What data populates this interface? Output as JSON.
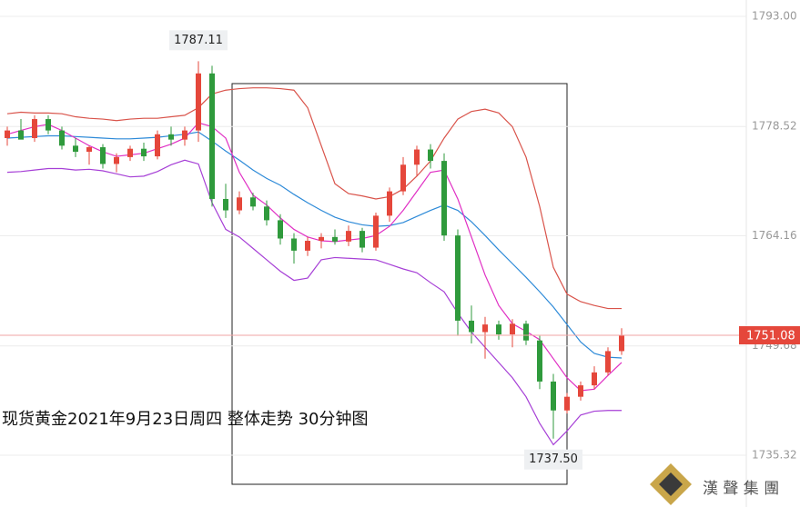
{
  "chart_data": {
    "type": "candlestick",
    "title": "现货黄金2021年9月23日周四 整体走势 30分钟图",
    "up_color": "#e5473b",
    "down_color": "#2f9a3c",
    "open": [
      1777,
      1778,
      1777,
      1779.5,
      1778,
      1776,
      1775.2,
      1775.8,
      1773.6,
      1774.5,
      1775.6,
      1774.6,
      1777.5,
      1776.8,
      1778,
      1785.5,
      1769,
      1767.5,
      1769.2,
      1768,
      1766.2,
      1763.8,
      1762.2,
      1763.5,
      1764,
      1763.4,
      1764.8,
      1762.6,
      1766.8,
      1770,
      1773.5,
      1775.5,
      1774,
      1764.2,
      1753,
      1751.5,
      1752.5,
      1751.2,
      1752.6,
      1750.4,
      1745,
      1741.2,
      1743,
      1744.5,
      1746.2,
      1749
    ],
    "high": [
      1778.5,
      1779.5,
      1780,
      1780,
      1778.5,
      1777,
      1776,
      1776.2,
      1775,
      1776,
      1776.4,
      1778,
      1778.5,
      1778.5,
      1787.11,
      1786.5,
      1771,
      1770,
      1769.8,
      1768.8,
      1767,
      1764.5,
      1764,
      1764.5,
      1765,
      1765.5,
      1765.2,
      1767.2,
      1770.5,
      1774.5,
      1776,
      1776.2,
      1775,
      1765,
      1755,
      1753.5,
      1753,
      1753.2,
      1753,
      1751,
      1746,
      1743.5,
      1745,
      1747,
      1749.5,
      1752
    ],
    "low": [
      1776,
      1777,
      1776.5,
      1777.5,
      1775.5,
      1774.5,
      1773.5,
      1773,
      1772.5,
      1774,
      1774,
      1774.2,
      1776,
      1776,
      1776.5,
      1768,
      1766.5,
      1767,
      1767.5,
      1765.5,
      1763,
      1760.5,
      1761.5,
      1762.5,
      1763,
      1762.8,
      1762,
      1762.2,
      1766,
      1769.5,
      1772,
      1773,
      1763.5,
      1751,
      1750,
      1748,
      1750.5,
      1749.5,
      1749.8,
      1744,
      1737.5,
      1740.8,
      1742.5,
      1744,
      1745.8,
      1748.5
    ],
    "close": [
      1778,
      1776.8,
      1779.5,
      1778,
      1776,
      1775.2,
      1775.8,
      1773.6,
      1774.5,
      1775.6,
      1774.6,
      1777.5,
      1776.8,
      1778,
      1785.5,
      1769,
      1767.5,
      1769.2,
      1768,
      1766.2,
      1763.8,
      1762.2,
      1763.5,
      1764,
      1763.4,
      1764.8,
      1762.6,
      1766.8,
      1770,
      1773.5,
      1775.5,
      1774,
      1764.2,
      1753,
      1751.5,
      1752.5,
      1751.2,
      1752.6,
      1750.4,
      1745,
      1741.2,
      1743,
      1744.5,
      1746.2,
      1749,
      1751.08
    ],
    "series": [
      {
        "color": "#d9534a",
        "values": [
          1780.2,
          1780.4,
          1780.3,
          1780.3,
          1780.2,
          1779.8,
          1779.6,
          1779.5,
          1779.3,
          1779.5,
          1779.6,
          1779.6,
          1779.8,
          1780,
          1781,
          1782.8,
          1783.3,
          1783.5,
          1783.6,
          1783.6,
          1783.5,
          1783.3,
          1781,
          1776,
          1771,
          1769.7,
          1769.4,
          1769,
          1769.3,
          1770.3,
          1772,
          1774,
          1777,
          1779.5,
          1780.5,
          1780.8,
          1780.3,
          1778.5,
          1774.5,
          1768,
          1760,
          1756.5,
          1755.5,
          1755,
          1754.6,
          1754.6
        ]
      },
      {
        "color": "#2d8ad8",
        "values": [
          1777,
          1777.1,
          1777.2,
          1777.3,
          1777.3,
          1777.2,
          1777.1,
          1777,
          1776.9,
          1776.9,
          1777,
          1777.1,
          1777.3,
          1777.5,
          1777.8,
          1776.6,
          1775.3,
          1774.1,
          1772.8,
          1771.7,
          1770.8,
          1769.6,
          1768.5,
          1767.5,
          1766.6,
          1766,
          1765.6,
          1765.4,
          1765.5,
          1765.9,
          1766.7,
          1767.5,
          1768.2,
          1767.5,
          1766,
          1764.2,
          1762.3,
          1760.5,
          1758.7,
          1756.8,
          1754.8,
          1752.5,
          1750.2,
          1748.7,
          1748.2,
          1748.1
        ]
      },
      {
        "color": "#a63fd6",
        "values": [
          1772.5,
          1772.6,
          1772.8,
          1773,
          1773,
          1772.8,
          1772.9,
          1772.7,
          1772.3,
          1771.9,
          1772,
          1772.6,
          1773.5,
          1774.1,
          1773.6,
          1768.5,
          1765,
          1764,
          1762.5,
          1761,
          1759.5,
          1758.3,
          1758.6,
          1761,
          1761.3,
          1761.2,
          1761.1,
          1761,
          1760.4,
          1759.8,
          1759.3,
          1758,
          1756.8,
          1754,
          1751.5,
          1749.5,
          1747.5,
          1745.5,
          1743,
          1739.5,
          1736.7,
          1738.5,
          1740.6,
          1741.1,
          1741.2,
          1741.2
        ]
      },
      {
        "color": "#e02fc4",
        "values": [
          1777.5,
          1778,
          1778.5,
          1778.8,
          1778,
          1777,
          1776,
          1775.2,
          1774.6,
          1774.8,
          1775,
          1775.6,
          1776.2,
          1777,
          1779,
          1778.5,
          1777,
          1772.5,
          1769.5,
          1768.2,
          1766.5,
          1765,
          1764,
          1763.5,
          1763.4,
          1763.6,
          1763.8,
          1764.2,
          1765.4,
          1767.5,
          1770,
          1772.5,
          1772.8,
          1769,
          1764,
          1759,
          1755,
          1752.6,
          1751.6,
          1750.5,
          1748,
          1745.5,
          1743.8,
          1744,
          1745.8,
          1747.5
        ]
      }
    ],
    "ylim": [
      1728.51,
      1795.15
    ],
    "yticks": [
      {
        "value": 1793,
        "label": "1793.00"
      },
      {
        "value": 1778.52,
        "label": "1778.52"
      },
      {
        "value": 1764.16,
        "label": "1764.16"
      },
      {
        "value": 1749.68,
        "label": "1749.68"
      },
      {
        "value": 1735.32,
        "label": "1735.32"
      }
    ],
    "grid": true,
    "current_price": {
      "value": 1751.08,
      "label": "1751.08"
    },
    "high_label": "1787.11",
    "low_label": "1737.50",
    "logo_text": "漢 聲 集 團"
  }
}
